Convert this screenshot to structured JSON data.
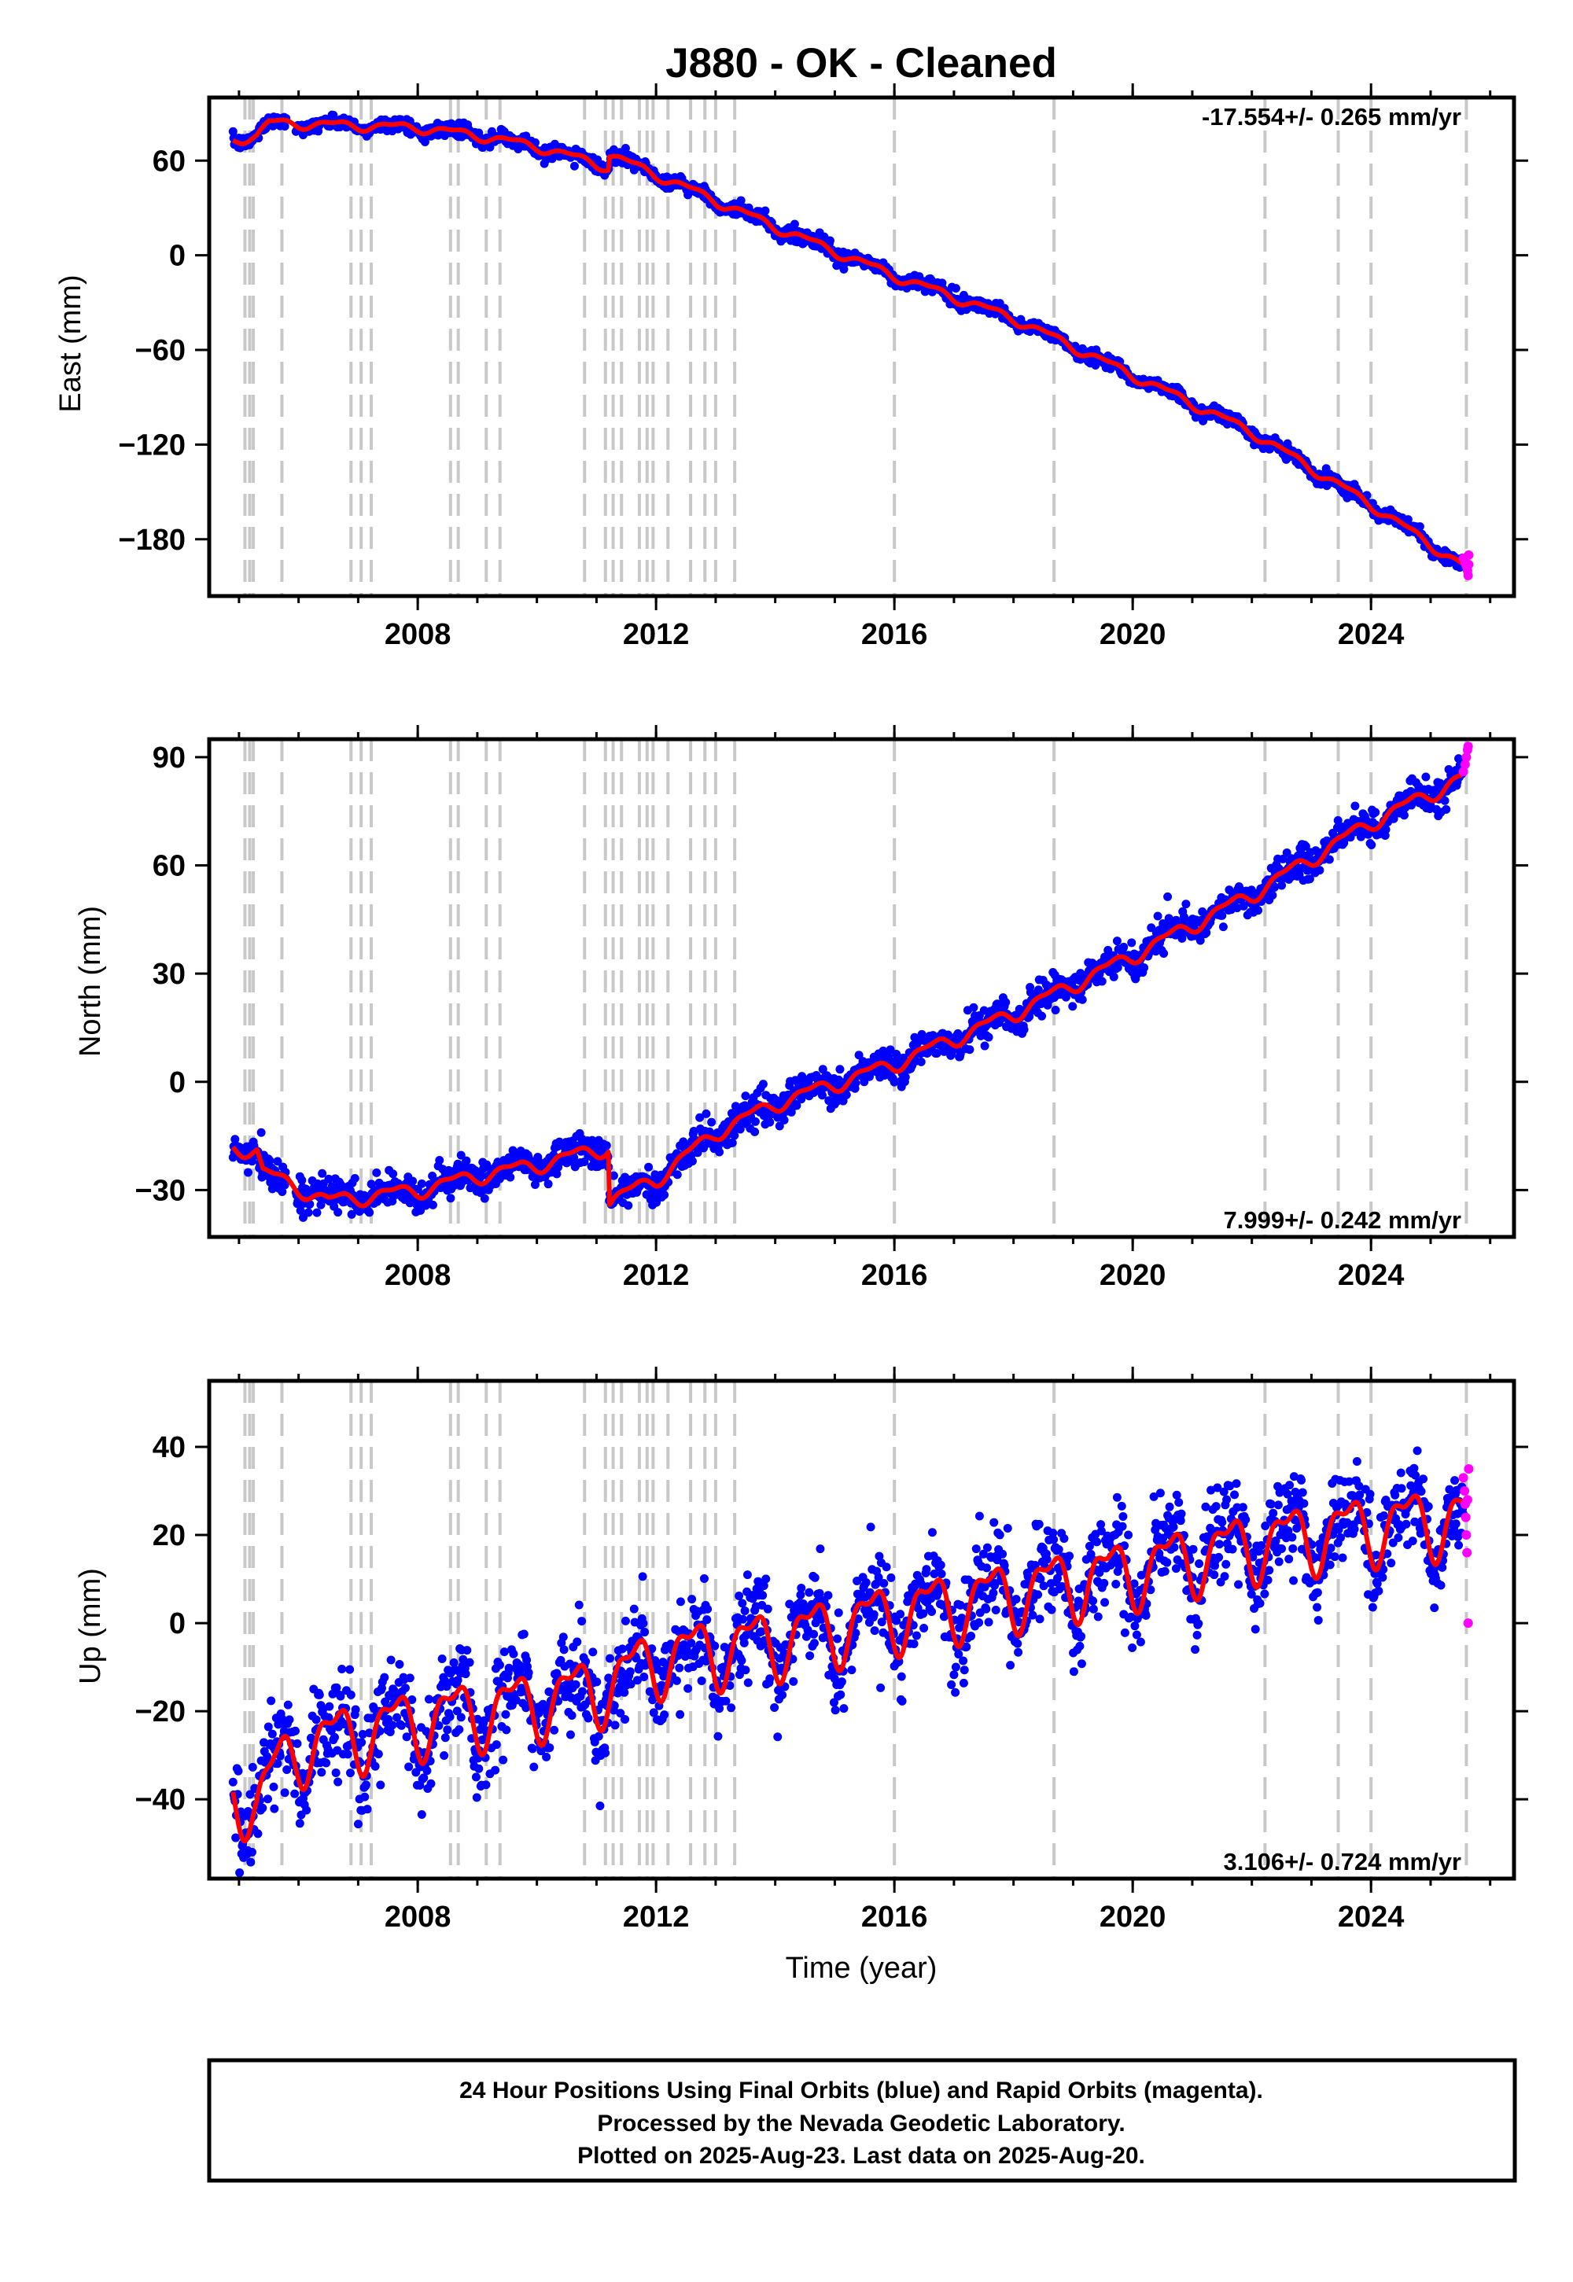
{
  "title": "J880  - OK - Cleaned",
  "footer": {
    "line1": "24 Hour Positions Using Final Orbits (blue) and Rapid Orbits (magenta).",
    "line2": "Processed by the Nevada Geodetic Laboratory.",
    "line3": "Plotted on 2025-Aug-23. Last data on 2025-Aug-20."
  },
  "colors": {
    "final_orbits": "#0000ff",
    "rapid_orbits": "#ff00ff",
    "model_fit": "#ff0000",
    "event_lines": "#c8c8c8",
    "frame": "#000000"
  },
  "chart_data": [
    {
      "type": "scatter",
      "component": "east",
      "xlabel": "",
      "ylabel": "East (mm)",
      "xlim": [
        2004.5,
        2026.4
      ],
      "ylim": [
        -216,
        100
      ],
      "xticks": [
        2008,
        2012,
        2016,
        2020,
        2024
      ],
      "yticks": [
        60,
        0,
        -60,
        -120,
        -180
      ],
      "ytick_labels": [
        "60",
        "0",
        "−60",
        "−120",
        "−180"
      ],
      "rate_label": "-17.554+/- 0.265 mm/yr",
      "rate_position": "top-right",
      "grid": false,
      "model_knots": [
        [
          2004.9,
          73
        ],
        [
          2005.3,
          76
        ],
        [
          2005.5,
          84
        ],
        [
          2008.0,
          81
        ],
        [
          2009.0,
          76
        ],
        [
          2010.0,
          69
        ],
        [
          2011.2,
          56
        ],
        [
          2011.21,
          64
        ],
        [
          2012.5,
          43
        ],
        [
          2014.0,
          18
        ],
        [
          2016.0,
          -13
        ],
        [
          2018.0,
          -40
        ],
        [
          2020.0,
          -76
        ],
        [
          2022.0,
          -112
        ],
        [
          2024.0,
          -158
        ],
        [
          2025.5,
          -196
        ],
        [
          2025.6,
          -197
        ]
      ],
      "seasonal_amplitude": 2.5,
      "scatter_noise": 2.0,
      "rapid_orbit_values": [
        [
          2025.55,
          -192
        ],
        [
          2025.58,
          -195
        ],
        [
          2025.6,
          -197
        ],
        [
          2025.62,
          -200
        ],
        [
          2025.63,
          -203
        ],
        [
          2025.64,
          -196
        ],
        [
          2025.64,
          -190
        ]
      ]
    },
    {
      "type": "scatter",
      "component": "north",
      "xlabel": "",
      "ylabel": "North (mm)",
      "xlim": [
        2004.5,
        2026.4
      ],
      "ylim": [
        -43,
        95
      ],
      "xticks": [
        2008,
        2012,
        2016,
        2020,
        2024
      ],
      "yticks": [
        90,
        60,
        30,
        0,
        -30
      ],
      "ytick_labels": [
        "90",
        "60",
        "30",
        "0",
        "−30"
      ],
      "rate_label": "7.999+/- 0.242 mm/yr",
      "rate_position": "bottom-right",
      "grid": false,
      "model_knots": [
        [
          2004.9,
          -18
        ],
        [
          2005.3,
          -19
        ],
        [
          2005.4,
          -25
        ],
        [
          2006.5,
          -33
        ],
        [
          2008.0,
          -30
        ],
        [
          2009.0,
          -26
        ],
        [
          2010.0,
          -23
        ],
        [
          2011.2,
          -18
        ],
        [
          2011.21,
          -33
        ],
        [
          2012.0,
          -27
        ],
        [
          2013.0,
          -14
        ],
        [
          2014.0,
          -6
        ],
        [
          2016.0,
          5
        ],
        [
          2018.0,
          19
        ],
        [
          2020.0,
          35
        ],
        [
          2022.0,
          52
        ],
        [
          2024.0,
          72
        ],
        [
          2025.5,
          84
        ],
        [
          2025.6,
          88
        ]
      ],
      "seasonal_amplitude": 1.8,
      "scatter_noise": 2.2,
      "rapid_orbit_values": [
        [
          2025.55,
          86
        ],
        [
          2025.58,
          88
        ],
        [
          2025.6,
          90
        ],
        [
          2025.62,
          92
        ],
        [
          2025.63,
          93
        ]
      ]
    },
    {
      "type": "scatter",
      "component": "up",
      "xlabel": "Time (year)",
      "ylabel": "Up (mm)",
      "xlim": [
        2004.5,
        2026.4
      ],
      "ylim": [
        -58,
        55
      ],
      "xticks": [
        2008,
        2012,
        2016,
        2020,
        2024
      ],
      "yticks": [
        40,
        20,
        0,
        -20,
        -40
      ],
      "ytick_labels": [
        "40",
        "20",
        "0",
        "−20",
        "−40"
      ],
      "rate_label": "3.106+/- 0.724 mm/yr",
      "rate_position": "bottom-right",
      "grid": false,
      "model_knots": [
        [
          2004.9,
          -38
        ],
        [
          2005.3,
          -41
        ],
        [
          2005.6,
          -34
        ],
        [
          2006.0,
          -28
        ],
        [
          2008.0,
          -22
        ],
        [
          2010.0,
          -18
        ],
        [
          2011.2,
          -14
        ],
        [
          2012.0,
          -8
        ],
        [
          2014.0,
          -4
        ],
        [
          2016.0,
          2
        ],
        [
          2018.0,
          7
        ],
        [
          2020.0,
          12
        ],
        [
          2022.0,
          18
        ],
        [
          2024.0,
          22
        ],
        [
          2025.6,
          24
        ]
      ],
      "seasonal_amplitude": 7,
      "scatter_noise": 5,
      "rapid_orbit_values": [
        [
          2025.55,
          33
        ],
        [
          2025.57,
          30
        ],
        [
          2025.58,
          27
        ],
        [
          2025.59,
          24
        ],
        [
          2025.6,
          20
        ],
        [
          2025.61,
          16
        ],
        [
          2025.62,
          28
        ],
        [
          2025.63,
          0
        ],
        [
          2025.64,
          35
        ]
      ]
    }
  ],
  "event_lines_years": [
    2005.1,
    2005.18,
    2005.24,
    2005.72,
    2006.88,
    2007.05,
    2007.22,
    2008.55,
    2008.68,
    2009.15,
    2009.38,
    2010.8,
    2011.15,
    2011.28,
    2011.42,
    2011.72,
    2011.85,
    2011.95,
    2012.2,
    2012.58,
    2012.82,
    2013.0,
    2013.32,
    2016.0,
    2018.68,
    2022.22,
    2023.45,
    2024.0,
    2025.6
  ]
}
